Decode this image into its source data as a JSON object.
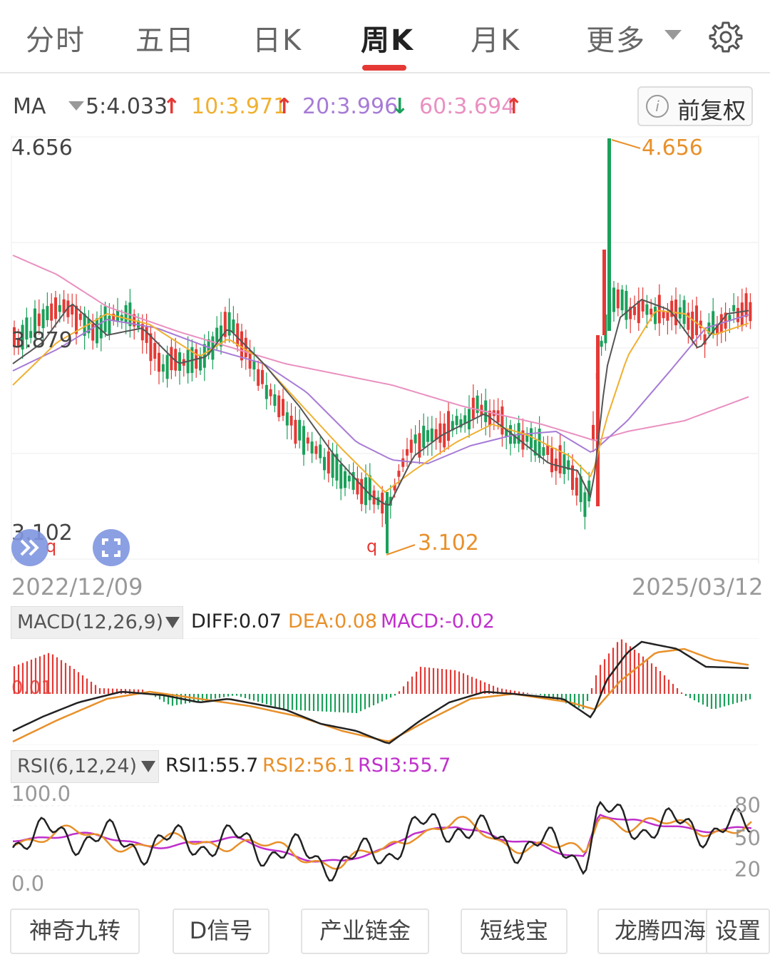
{
  "tabs": [
    {
      "label": "分时"
    },
    {
      "label": "五日"
    },
    {
      "label": "日K"
    },
    {
      "label": "周K",
      "active": true
    },
    {
      "label": "月K"
    },
    {
      "label": "更多"
    }
  ],
  "ma": {
    "label": "MA",
    "ma5": "5:4.033",
    "ma10": "10:3.971",
    "ma20": "20:3.996",
    "ma60": "60:3.694",
    "up_arrow": "↑",
    "down_arrow": "↓",
    "colors": {
      "ma5": "#444444",
      "ma10": "#f0b030",
      "ma20": "#a77bd6",
      "ma60": "#e990c0"
    }
  },
  "adjust_button": {
    "label": "前复权",
    "icon": "info-icon"
  },
  "price_chart": {
    "max_label": "4.656",
    "mid_label": "3.879",
    "min_label": "3.102",
    "high_marker": "4.656",
    "low_marker": "3.102",
    "start_date": "2022/12/09",
    "end_date": "2025/03/12",
    "q_label": "q"
  },
  "macd": {
    "selector": "MACD(12,26,9)",
    "diff": "DIFF:0.07",
    "dea": "DEA:0.08",
    "macd": "MACD:-0.02",
    "zero_label": "0.01"
  },
  "rsi": {
    "selector": "RSI(6,12,24)",
    "rsi1": "RSI1:55.7",
    "rsi2": "RSI2:56.1",
    "rsi3": "RSI3:55.7",
    "top": "100.0",
    "bottom": "0.0",
    "l80": "80",
    "l50": "50",
    "l20": "20"
  },
  "bottom_buttons": [
    "神奇九转",
    "D信号",
    "产业链金",
    "短线宝",
    "龙腾四海",
    "设置"
  ],
  "chart_data": {
    "type": "candlestick",
    "title": "",
    "period": "weekly",
    "x_range": [
      "2022/12/09",
      "2025/03/12"
    ],
    "ylim": [
      3.102,
      4.656
    ],
    "series": [
      {
        "name": "MA5",
        "latest": 4.033
      },
      {
        "name": "MA10",
        "latest": 3.971
      },
      {
        "name": "MA20",
        "latest": 3.996
      },
      {
        "name": "MA60",
        "latest": 3.694
      }
    ],
    "indicators": {
      "MACD": {
        "DIFF": 0.07,
        "DEA": 0.08,
        "MACD": -0.02
      },
      "RSI": {
        "RSI1": 55.7,
        "RSI2": 56.1,
        "RSI3": 55.7
      }
    }
  }
}
